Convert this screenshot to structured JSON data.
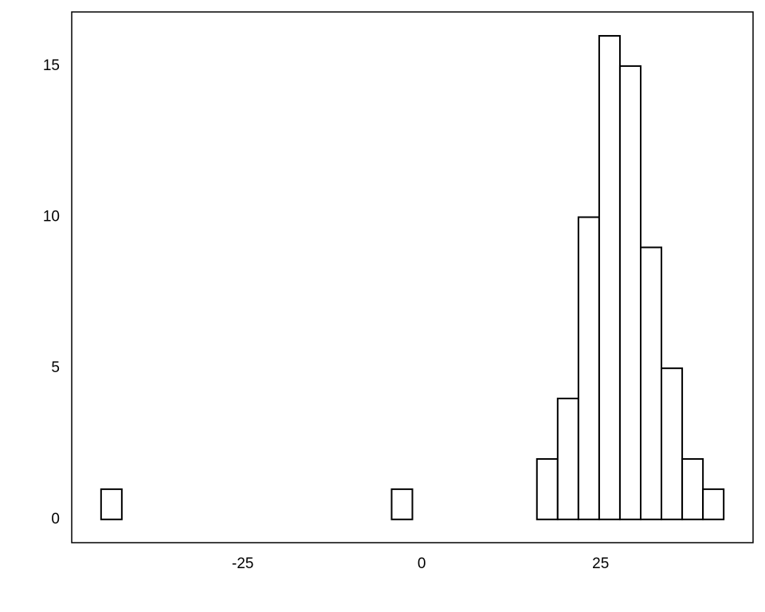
{
  "chart_data": {
    "type": "histogram",
    "bins": [
      -44.8,
      -41.9,
      -39.0,
      -36.1,
      -33.2,
      -30.3,
      -27.4,
      -24.5,
      -21.6,
      -18.7,
      -15.8,
      -12.9,
      -10.0,
      -7.1,
      -4.2,
      -1.3,
      1.6,
      4.5,
      7.4,
      10.3,
      13.2,
      16.1,
      19.0,
      21.9,
      24.8,
      27.7,
      30.6,
      33.5,
      36.4,
      39.3,
      42.2
    ],
    "values": [
      1,
      0,
      0,
      0,
      0,
      0,
      0,
      0,
      0,
      0,
      0,
      0,
      0,
      0,
      1,
      0,
      0,
      0,
      0,
      0,
      0,
      2,
      4,
      10,
      16,
      15,
      9,
      5,
      2,
      1
    ],
    "color": "#ffffff",
    "edgecolor": "#000000",
    "xlim": [
      -48.9,
      46.3
    ],
    "ylim": [
      -0.77,
      16.79
    ],
    "xticks": [
      -25,
      0,
      25
    ],
    "yticks": [
      0,
      5,
      10,
      15
    ],
    "grid": false
  }
}
